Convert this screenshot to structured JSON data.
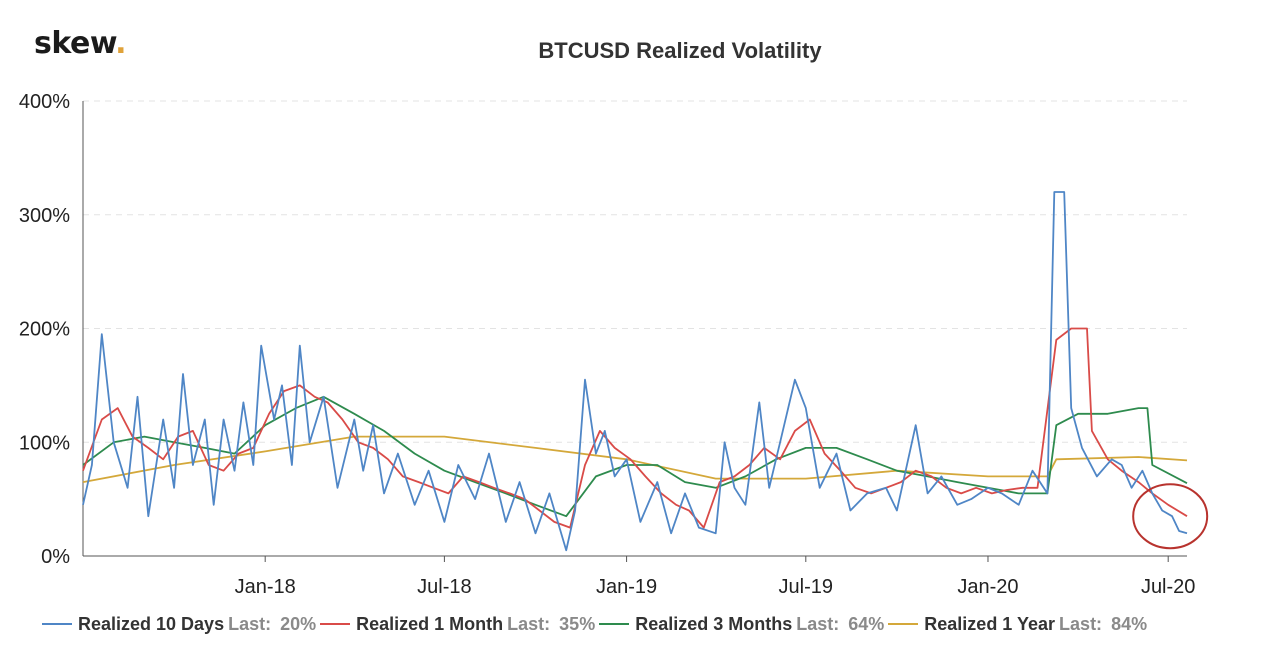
{
  "logo": {
    "text": "skew",
    "dot": "."
  },
  "chart_data": {
    "type": "line",
    "title": "BTCUSD Realized Volatility",
    "xlabel": "",
    "ylabel": "",
    "y_ticks": [
      "0%",
      "100%",
      "200%",
      "300%",
      "400%"
    ],
    "ylim": [
      0,
      400
    ],
    "x_range": [
      "2017-07-01",
      "2020-07-20"
    ],
    "x_ticks": [
      {
        "label": "Jan-18",
        "date": "2018-01-01"
      },
      {
        "label": "Jul-18",
        "date": "2018-07-01"
      },
      {
        "label": "Jan-19",
        "date": "2019-01-01"
      },
      {
        "label": "Jul-19",
        "date": "2019-07-01"
      },
      {
        "label": "Jan-20",
        "date": "2020-01-01"
      },
      {
        "label": "Jul-20",
        "date": "2020-07-01"
      }
    ],
    "grid": "horizontal-dashed",
    "legend": "bottom",
    "series": [
      {
        "name": "Realized 10 Days",
        "last_label": "Last:",
        "last_value": "20%",
        "color": "#4f86c6",
        "points": [
          [
            "2017-07-01",
            45
          ],
          [
            "2017-07-10",
            80
          ],
          [
            "2017-07-20",
            195
          ],
          [
            "2017-08-01",
            100
          ],
          [
            "2017-08-15",
            60
          ],
          [
            "2017-08-25",
            140
          ],
          [
            "2017-09-05",
            35
          ],
          [
            "2017-09-20",
            120
          ],
          [
            "2017-10-01",
            60
          ],
          [
            "2017-10-10",
            160
          ],
          [
            "2017-10-20",
            80
          ],
          [
            "2017-11-01",
            120
          ],
          [
            "2017-11-10",
            45
          ],
          [
            "2017-11-20",
            120
          ],
          [
            "2017-12-01",
            75
          ],
          [
            "2017-12-10",
            135
          ],
          [
            "2017-12-20",
            80
          ],
          [
            "2017-12-28",
            185
          ],
          [
            "2018-01-10",
            120
          ],
          [
            "2018-01-18",
            150
          ],
          [
            "2018-01-28",
            80
          ],
          [
            "2018-02-05",
            185
          ],
          [
            "2018-02-15",
            100
          ],
          [
            "2018-03-01",
            140
          ],
          [
            "2018-03-15",
            60
          ],
          [
            "2018-04-01",
            120
          ],
          [
            "2018-04-10",
            75
          ],
          [
            "2018-04-20",
            115
          ],
          [
            "2018-05-01",
            55
          ],
          [
            "2018-05-15",
            90
          ],
          [
            "2018-06-01",
            45
          ],
          [
            "2018-06-15",
            75
          ],
          [
            "2018-07-01",
            30
          ],
          [
            "2018-07-15",
            80
          ],
          [
            "2018-08-01",
            50
          ],
          [
            "2018-08-15",
            90
          ],
          [
            "2018-09-01",
            30
          ],
          [
            "2018-09-15",
            65
          ],
          [
            "2018-10-01",
            20
          ],
          [
            "2018-10-15",
            55
          ],
          [
            "2018-11-01",
            5
          ],
          [
            "2018-11-10",
            40
          ],
          [
            "2018-11-20",
            155
          ],
          [
            "2018-12-01",
            90
          ],
          [
            "2018-12-10",
            110
          ],
          [
            "2018-12-20",
            70
          ],
          [
            "2019-01-01",
            85
          ],
          [
            "2019-01-15",
            30
          ],
          [
            "2019-02-01",
            65
          ],
          [
            "2019-02-15",
            20
          ],
          [
            "2019-03-01",
            55
          ],
          [
            "2019-03-15",
            25
          ],
          [
            "2019-04-01",
            20
          ],
          [
            "2019-04-10",
            100
          ],
          [
            "2019-04-20",
            60
          ],
          [
            "2019-05-01",
            45
          ],
          [
            "2019-05-15",
            135
          ],
          [
            "2019-05-25",
            60
          ],
          [
            "2019-06-05",
            100
          ],
          [
            "2019-06-20",
            155
          ],
          [
            "2019-07-01",
            130
          ],
          [
            "2019-07-15",
            60
          ],
          [
            "2019-08-01",
            90
          ],
          [
            "2019-08-15",
            40
          ],
          [
            "2019-09-01",
            55
          ],
          [
            "2019-09-20",
            60
          ],
          [
            "2019-10-01",
            40
          ],
          [
            "2019-10-20",
            115
          ],
          [
            "2019-11-01",
            55
          ],
          [
            "2019-11-15",
            70
          ],
          [
            "2019-12-01",
            45
          ],
          [
            "2019-12-15",
            50
          ],
          [
            "2020-01-01",
            60
          ],
          [
            "2020-01-15",
            55
          ],
          [
            "2020-02-01",
            45
          ],
          [
            "2020-02-15",
            75
          ],
          [
            "2020-03-01",
            55
          ],
          [
            "2020-03-08",
            320
          ],
          [
            "2020-03-18",
            320
          ],
          [
            "2020-03-25",
            130
          ],
          [
            "2020-04-05",
            95
          ],
          [
            "2020-04-20",
            70
          ],
          [
            "2020-05-05",
            85
          ],
          [
            "2020-05-15",
            80
          ],
          [
            "2020-05-25",
            60
          ],
          [
            "2020-06-05",
            75
          ],
          [
            "2020-06-15",
            55
          ],
          [
            "2020-06-25",
            40
          ],
          [
            "2020-07-05",
            35
          ],
          [
            "2020-07-12",
            22
          ],
          [
            "2020-07-20",
            20
          ]
        ]
      },
      {
        "name": "Realized 1 Month",
        "last_label": "Last:",
        "last_value": "35%",
        "color": "#d94b48",
        "points": [
          [
            "2017-07-01",
            75
          ],
          [
            "2017-07-20",
            120
          ],
          [
            "2017-08-05",
            130
          ],
          [
            "2017-08-20",
            105
          ],
          [
            "2017-09-05",
            95
          ],
          [
            "2017-09-20",
            85
          ],
          [
            "2017-10-05",
            105
          ],
          [
            "2017-10-20",
            110
          ],
          [
            "2017-11-05",
            80
          ],
          [
            "2017-11-20",
            75
          ],
          [
            "2017-12-05",
            90
          ],
          [
            "2017-12-20",
            95
          ],
          [
            "2018-01-05",
            125
          ],
          [
            "2018-01-20",
            145
          ],
          [
            "2018-02-05",
            150
          ],
          [
            "2018-02-20",
            140
          ],
          [
            "2018-03-05",
            135
          ],
          [
            "2018-03-20",
            120
          ],
          [
            "2018-04-05",
            100
          ],
          [
            "2018-04-20",
            95
          ],
          [
            "2018-05-05",
            85
          ],
          [
            "2018-05-20",
            70
          ],
          [
            "2018-06-05",
            65
          ],
          [
            "2018-06-20",
            60
          ],
          [
            "2018-07-05",
            55
          ],
          [
            "2018-07-20",
            70
          ],
          [
            "2018-08-05",
            65
          ],
          [
            "2018-08-20",
            60
          ],
          [
            "2018-09-05",
            55
          ],
          [
            "2018-09-20",
            50
          ],
          [
            "2018-10-05",
            40
          ],
          [
            "2018-10-20",
            30
          ],
          [
            "2018-11-05",
            25
          ],
          [
            "2018-11-20",
            80
          ],
          [
            "2018-12-05",
            110
          ],
          [
            "2018-12-20",
            95
          ],
          [
            "2019-01-05",
            85
          ],
          [
            "2019-01-20",
            70
          ],
          [
            "2019-02-05",
            55
          ],
          [
            "2019-02-20",
            45
          ],
          [
            "2019-03-05",
            40
          ],
          [
            "2019-03-20",
            25
          ],
          [
            "2019-04-05",
            65
          ],
          [
            "2019-04-20",
            70
          ],
          [
            "2019-05-05",
            80
          ],
          [
            "2019-05-20",
            95
          ],
          [
            "2019-06-05",
            85
          ],
          [
            "2019-06-20",
            110
          ],
          [
            "2019-07-05",
            120
          ],
          [
            "2019-07-20",
            90
          ],
          [
            "2019-08-05",
            75
          ],
          [
            "2019-08-20",
            60
          ],
          [
            "2019-09-05",
            55
          ],
          [
            "2019-09-20",
            60
          ],
          [
            "2019-10-05",
            65
          ],
          [
            "2019-10-20",
            75
          ],
          [
            "2019-11-05",
            70
          ],
          [
            "2019-11-20",
            60
          ],
          [
            "2019-12-05",
            55
          ],
          [
            "2019-12-20",
            60
          ],
          [
            "2020-01-05",
            55
          ],
          [
            "2020-01-20",
            58
          ],
          [
            "2020-02-05",
            60
          ],
          [
            "2020-02-20",
            60
          ],
          [
            "2020-03-10",
            190
          ],
          [
            "2020-03-25",
            200
          ],
          [
            "2020-04-10",
            200
          ],
          [
            "2020-04-15",
            110
          ],
          [
            "2020-05-01",
            85
          ],
          [
            "2020-05-15",
            75
          ],
          [
            "2020-06-01",
            65
          ],
          [
            "2020-06-15",
            55
          ],
          [
            "2020-07-01",
            45
          ],
          [
            "2020-07-20",
            35
          ]
        ]
      },
      {
        "name": "Realized 3 Months",
        "last_label": "Last:",
        "last_value": "64%",
        "color": "#2e8b4e",
        "points": [
          [
            "2017-07-01",
            80
          ],
          [
            "2017-08-01",
            100
          ],
          [
            "2017-09-01",
            105
          ],
          [
            "2017-10-01",
            100
          ],
          [
            "2017-11-01",
            95
          ],
          [
            "2017-12-01",
            90
          ],
          [
            "2018-01-01",
            115
          ],
          [
            "2018-02-01",
            130
          ],
          [
            "2018-03-01",
            140
          ],
          [
            "2018-04-01",
            125
          ],
          [
            "2018-05-01",
            110
          ],
          [
            "2018-06-01",
            90
          ],
          [
            "2018-07-01",
            75
          ],
          [
            "2018-08-01",
            65
          ],
          [
            "2018-09-01",
            55
          ],
          [
            "2018-10-01",
            45
          ],
          [
            "2018-11-01",
            35
          ],
          [
            "2018-12-01",
            70
          ],
          [
            "2019-01-01",
            80
          ],
          [
            "2019-02-01",
            80
          ],
          [
            "2019-03-01",
            65
          ],
          [
            "2019-04-01",
            60
          ],
          [
            "2019-05-01",
            70
          ],
          [
            "2019-06-01",
            85
          ],
          [
            "2019-07-01",
            95
          ],
          [
            "2019-08-01",
            95
          ],
          [
            "2019-09-01",
            85
          ],
          [
            "2019-10-01",
            75
          ],
          [
            "2019-11-01",
            70
          ],
          [
            "2019-12-01",
            65
          ],
          [
            "2020-01-01",
            60
          ],
          [
            "2020-02-01",
            55
          ],
          [
            "2020-03-01",
            55
          ],
          [
            "2020-03-10",
            115
          ],
          [
            "2020-04-01",
            125
          ],
          [
            "2020-05-01",
            125
          ],
          [
            "2020-06-01",
            130
          ],
          [
            "2020-06-10",
            130
          ],
          [
            "2020-06-15",
            80
          ],
          [
            "2020-07-20",
            64
          ]
        ]
      },
      {
        "name": "Realized 1 Year",
        "last_label": "Last:",
        "last_value": "84%",
        "color": "#d4a83a",
        "points": [
          [
            "2017-07-01",
            65
          ],
          [
            "2017-10-01",
            80
          ],
          [
            "2018-01-01",
            92
          ],
          [
            "2018-04-01",
            105
          ],
          [
            "2018-07-01",
            105
          ],
          [
            "2018-10-01",
            95
          ],
          [
            "2019-01-01",
            85
          ],
          [
            "2019-04-01",
            68
          ],
          [
            "2019-07-01",
            68
          ],
          [
            "2019-10-01",
            75
          ],
          [
            "2020-01-01",
            70
          ],
          [
            "2020-03-01",
            70
          ],
          [
            "2020-03-10",
            85
          ],
          [
            "2020-06-01",
            87
          ],
          [
            "2020-07-20",
            84
          ]
        ]
      }
    ],
    "annotation": {
      "type": "circle",
      "color": "#b8332e",
      "date": "2020-07-01",
      "value": 35
    }
  }
}
